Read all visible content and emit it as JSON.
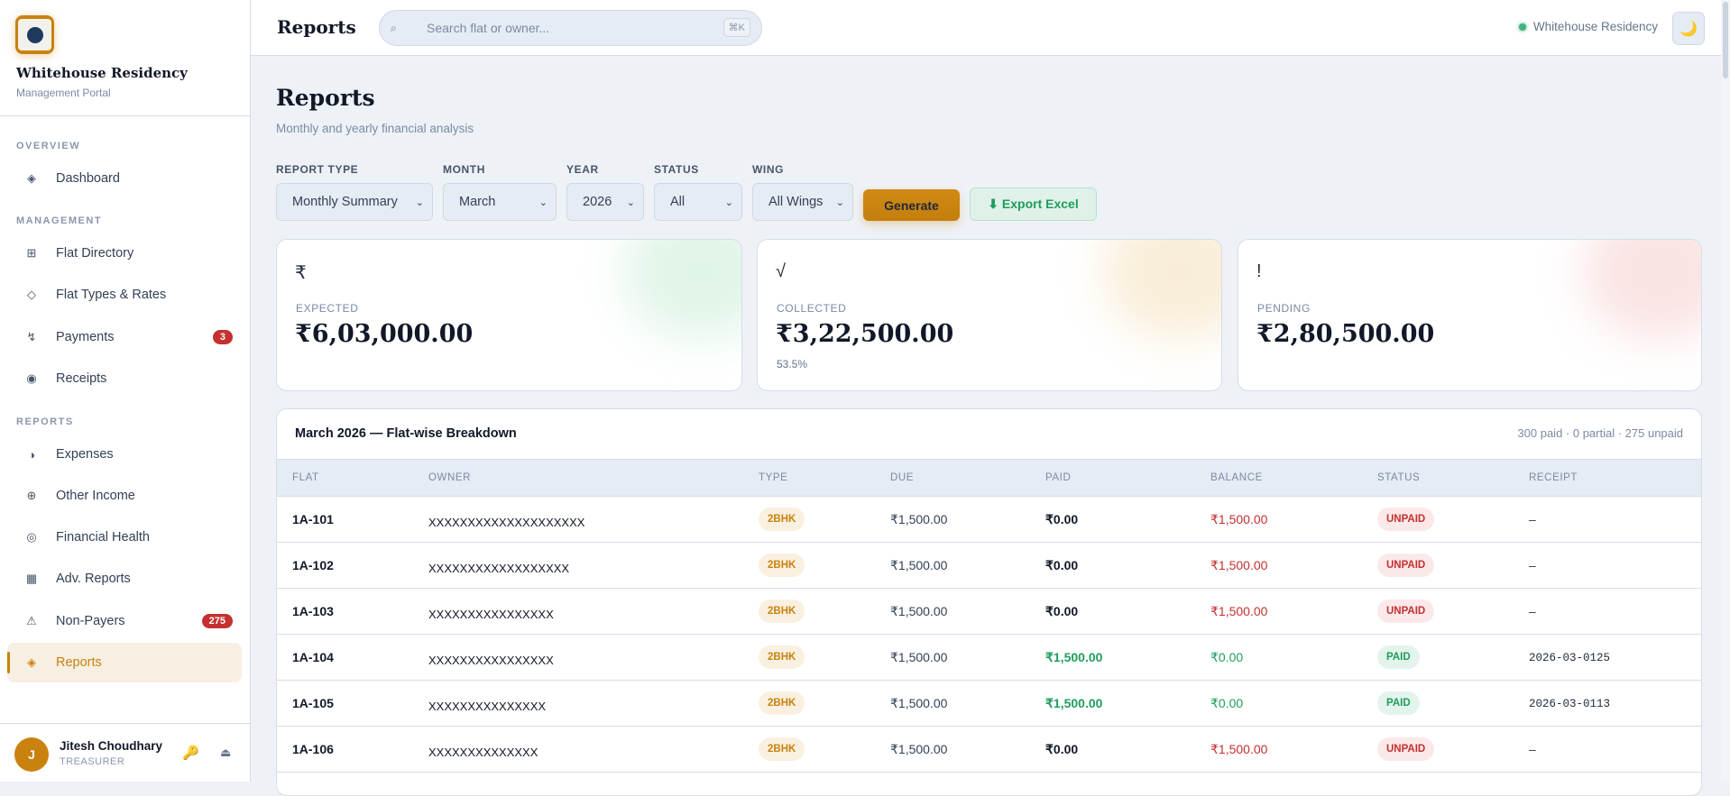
{
  "sidebar": {
    "brand": "Whitehouse Residency",
    "subtitle": "Management Portal",
    "sections": {
      "overview": "OVERVIEW",
      "management": "MANAGEMENT",
      "reports": "REPORTS"
    },
    "items": [
      {
        "label": "Dashboard",
        "icon": "◈"
      },
      {
        "label": "Flat Directory",
        "icon": "⊞"
      },
      {
        "label": "Flat Types & Rates",
        "icon": "◇"
      },
      {
        "label": "Payments",
        "icon": "↯",
        "badge": "3"
      },
      {
        "label": "Receipts",
        "icon": "◉"
      },
      {
        "label": "Expenses",
        "icon": "◑"
      },
      {
        "label": "Other Income",
        "icon": "⊕"
      },
      {
        "label": "Financial Health",
        "icon": "◎"
      },
      {
        "label": "Adv. Reports",
        "icon": "▦"
      },
      {
        "label": "Non-Payers",
        "icon": "⚠",
        "badge": "275"
      },
      {
        "label": "Reports",
        "icon": "◈",
        "active": true
      }
    ],
    "user": {
      "initial": "J",
      "name": "Jitesh Choudhary",
      "role": "TREASURER",
      "key_icon": "🔑",
      "logout_icon": "⏏"
    }
  },
  "header": {
    "title": "Reports",
    "search_placeholder": "Search flat or owner...",
    "search_icon": "⌕",
    "shortcut": "⌘K",
    "society": "Whitehouse Residency",
    "theme_icon": "🌙"
  },
  "page": {
    "title": "Reports",
    "subtitle": "Monthly and yearly financial analysis"
  },
  "filters": {
    "report_type": {
      "label": "REPORT TYPE",
      "value": "Monthly Summary"
    },
    "month": {
      "label": "MONTH",
      "value": "March"
    },
    "year": {
      "label": "YEAR",
      "value": "2026"
    },
    "status": {
      "label": "STATUS",
      "value": "All"
    },
    "wing": {
      "label": "WING",
      "value": "All Wings"
    },
    "generate": "Generate",
    "export": "⬇ Export Excel"
  },
  "cards": {
    "expected": {
      "icon": "₹",
      "label": "EXPECTED",
      "value": "₹6,03,000.00",
      "color": "#d7f0e0"
    },
    "collected": {
      "icon": "√",
      "label": "COLLECTED",
      "value": "₹3,22,500.00",
      "percent": "53.5%",
      "color": "#f7e8cc"
    },
    "pending": {
      "icon": "!",
      "label": "PENDING",
      "value": "₹2,80,500.00",
      "color": "#f8d8d8"
    }
  },
  "table": {
    "title": "March 2026 — Flat-wise Breakdown",
    "summary": "300 paid · 0 partial · 275 unpaid",
    "columns": [
      "FLAT",
      "OWNER",
      "TYPE",
      "DUE",
      "PAID",
      "BALANCE",
      "STATUS",
      "RECEIPT"
    ],
    "rows": [
      {
        "flat": "1A-101",
        "owner": "XXXXXXXXXXXXXXXXXXXX",
        "type": "2BHK",
        "due": "₹1,500.00",
        "paid": "₹0.00",
        "balance": "₹1,500.00",
        "status": "UNPAID",
        "receipt": "–"
      },
      {
        "flat": "1A-102",
        "owner": "XXXXXXXXXXXXXXXXXX",
        "type": "2BHK",
        "due": "₹1,500.00",
        "paid": "₹0.00",
        "balance": "₹1,500.00",
        "status": "UNPAID",
        "receipt": "–"
      },
      {
        "flat": "1A-103",
        "owner": "XXXXXXXXXXXXXXXX",
        "type": "2BHK",
        "due": "₹1,500.00",
        "paid": "₹0.00",
        "balance": "₹1,500.00",
        "status": "UNPAID",
        "receipt": "–"
      },
      {
        "flat": "1A-104",
        "owner": "XXXXXXXXXXXXXXXX",
        "type": "2BHK",
        "due": "₹1,500.00",
        "paid": "₹1,500.00",
        "balance": "₹0.00",
        "status": "PAID",
        "receipt": "2026-03-0125"
      },
      {
        "flat": "1A-105",
        "owner": "XXXXXXXXXXXXXXX",
        "type": "2BHK",
        "due": "₹1,500.00",
        "paid": "₹1,500.00",
        "balance": "₹0.00",
        "status": "PAID",
        "receipt": "2026-03-0113"
      },
      {
        "flat": "1A-106",
        "owner": "XXXXXXXXXXXXXX",
        "type": "2BHK",
        "due": "₹1,500.00",
        "paid": "₹0.00",
        "balance": "₹1,500.00",
        "status": "UNPAID",
        "receipt": "–"
      }
    ]
  }
}
